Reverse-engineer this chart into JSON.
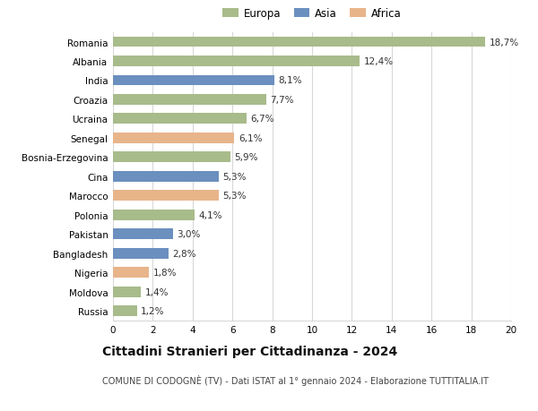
{
  "countries": [
    "Romania",
    "Albania",
    "India",
    "Croazia",
    "Ucraina",
    "Senegal",
    "Bosnia-Erzegovina",
    "Cina",
    "Marocco",
    "Polonia",
    "Pakistan",
    "Bangladesh",
    "Nigeria",
    "Moldova",
    "Russia"
  ],
  "values": [
    18.7,
    12.4,
    8.1,
    7.7,
    6.7,
    6.1,
    5.9,
    5.3,
    5.3,
    4.1,
    3.0,
    2.8,
    1.8,
    1.4,
    1.2
  ],
  "labels": [
    "18,7%",
    "12,4%",
    "8,1%",
    "7,7%",
    "6,7%",
    "6,1%",
    "5,9%",
    "5,3%",
    "5,3%",
    "4,1%",
    "3,0%",
    "2,8%",
    "1,8%",
    "1,4%",
    "1,2%"
  ],
  "continents": [
    "Europa",
    "Europa",
    "Asia",
    "Europa",
    "Europa",
    "Africa",
    "Europa",
    "Asia",
    "Africa",
    "Europa",
    "Asia",
    "Asia",
    "Africa",
    "Europa",
    "Europa"
  ],
  "colors": {
    "Europa": "#a8bb8a",
    "Asia": "#6b8fbf",
    "Africa": "#e8b48a"
  },
  "xlim": [
    0,
    20
  ],
  "xticks": [
    0,
    2,
    4,
    6,
    8,
    10,
    12,
    14,
    16,
    18,
    20
  ],
  "title": "Cittadini Stranieri per Cittadinanza - 2024",
  "subtitle": "COMUNE DI CODOGNÈ (TV) - Dati ISTAT al 1° gennaio 2024 - Elaborazione TUTTITALIA.IT",
  "background_color": "#ffffff",
  "grid_color": "#d8d8d8",
  "bar_height": 0.55,
  "label_fontsize": 7.5,
  "ytick_fontsize": 7.5,
  "xtick_fontsize": 7.5,
  "title_fontsize": 10,
  "subtitle_fontsize": 7,
  "legend_fontsize": 8.5
}
